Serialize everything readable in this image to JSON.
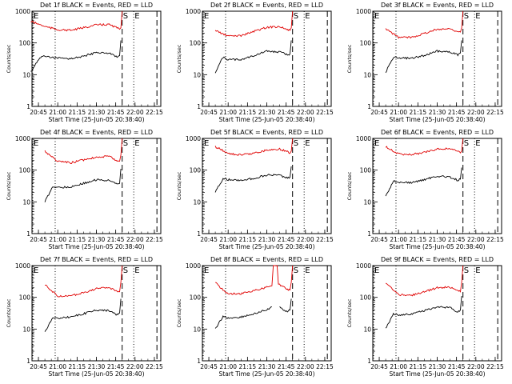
{
  "chart_data": [
    {
      "type": "line",
      "title": "Det 1f BLACK = Events, RED = LLD",
      "xlabel": "Start Time (25-Jun-05 20:38:40)",
      "ylabel": "Counts/sec",
      "ylog": true,
      "ylim": [
        1,
        1000
      ],
      "yticks": [
        "1",
        "10",
        "100",
        "1000"
      ],
      "xlim": [
        "20:40",
        "22:20"
      ],
      "xticks": [
        "20:45",
        "21:00",
        "21:15",
        "21:30",
        "21:45",
        "22:00",
        "22:15"
      ],
      "markers": [
        {
          "label": "E",
          "x": "20:38",
          "style": "dotted"
        },
        {
          "label": "",
          "x": "20:58",
          "style": "dotted"
        },
        {
          "label": "S",
          "x": "21:50",
          "style": "dashed"
        },
        {
          "label": "E",
          "x": "21:59",
          "style": "dotted"
        },
        {
          "label": "",
          "x": "22:17",
          "style": "dashed"
        }
      ],
      "series": [
        {
          "name": "BLACK = Events",
          "color": "#000000",
          "x": [
            "20:39",
            "20:46",
            "20:50",
            "21:00",
            "21:10",
            "21:20",
            "21:30",
            "21:40",
            "21:46",
            "21:48",
            "21:49"
          ],
          "values": [
            12,
            35,
            38,
            33,
            32,
            38,
            50,
            48,
            35,
            40,
            120
          ]
        },
        {
          "name": "RED = LLD",
          "color": "#e00000",
          "x": [
            "20:39",
            "20:50",
            "21:00",
            "21:10",
            "21:20",
            "21:30",
            "21:40",
            "21:46",
            "21:48",
            "21:49",
            "21:50"
          ],
          "values": [
            480,
            330,
            260,
            250,
            300,
            370,
            380,
            300,
            270,
            300,
            1000
          ]
        }
      ]
    },
    {
      "type": "line",
      "title": "Det 2f BLACK = Events, RED = LLD",
      "xlabel": "Start Time (25-Jun-05 20:38:40)",
      "ylabel": "Counts/sec",
      "ylog": true,
      "ylim": [
        1,
        1000
      ],
      "yticks": [
        "1",
        "10",
        "100",
        "1000"
      ],
      "xlim": [
        "20:40",
        "22:20"
      ],
      "xticks": [
        "20:45",
        "21:00",
        "21:15",
        "21:30",
        "21:45",
        "22:00",
        "22:15"
      ],
      "markers": [
        {
          "label": "E",
          "x": "20:38",
          "style": "dotted"
        },
        {
          "label": "",
          "x": "20:58",
          "style": "dotted"
        },
        {
          "label": "S",
          "x": "21:50",
          "style": "dashed"
        },
        {
          "label": "E",
          "x": "21:59",
          "style": "dotted"
        },
        {
          "label": "",
          "x": "22:17",
          "style": "dashed"
        }
      ],
      "series": [
        {
          "name": "BLACK = Events",
          "color": "#000000",
          "x": [
            "20:50",
            "20:56",
            "21:00",
            "21:10",
            "21:20",
            "21:30",
            "21:40",
            "21:46",
            "21:48",
            "21:49"
          ],
          "values": [
            12,
            35,
            30,
            30,
            40,
            55,
            52,
            42,
            45,
            120
          ]
        },
        {
          "name": "RED = LLD",
          "color": "#e00000",
          "x": [
            "20:50",
            "20:56",
            "21:00",
            "21:10",
            "21:20",
            "21:30",
            "21:40",
            "21:46",
            "21:48",
            "21:49",
            "21:50"
          ],
          "values": [
            250,
            190,
            165,
            170,
            230,
            310,
            330,
            260,
            250,
            300,
            1000
          ]
        }
      ]
    },
    {
      "type": "line",
      "title": "Det 3f BLACK = Events, RED = LLD",
      "xlabel": "Start Time (25-Jun-05 20:38:40)",
      "ylabel": "Counts/sec",
      "ylog": true,
      "ylim": [
        1,
        1000
      ],
      "yticks": [
        "1",
        "10",
        "100",
        "1000"
      ],
      "xlim": [
        "20:40",
        "22:20"
      ],
      "xticks": [
        "20:45",
        "21:00",
        "21:15",
        "21:30",
        "21:45",
        "22:00",
        "22:15"
      ],
      "markers": [
        {
          "label": "E",
          "x": "20:38",
          "style": "dotted"
        },
        {
          "label": "",
          "x": "20:58",
          "style": "dotted"
        },
        {
          "label": "S",
          "x": "21:50",
          "style": "dashed"
        },
        {
          "label": "E",
          "x": "21:59",
          "style": "dotted"
        },
        {
          "label": "",
          "x": "22:17",
          "style": "dashed"
        }
      ],
      "series": [
        {
          "name": "BLACK = Events",
          "color": "#000000",
          "x": [
            "20:50",
            "20:56",
            "21:00",
            "21:10",
            "21:20",
            "21:30",
            "21:40",
            "21:46",
            "21:48",
            "21:49"
          ],
          "values": [
            12,
            35,
            33,
            33,
            40,
            55,
            52,
            42,
            48,
            120
          ]
        },
        {
          "name": "RED = LLD",
          "color": "#e00000",
          "x": [
            "20:50",
            "20:56",
            "21:00",
            "21:10",
            "21:20",
            "21:30",
            "21:40",
            "21:46",
            "21:48",
            "21:49",
            "21:50"
          ],
          "values": [
            280,
            190,
            150,
            150,
            200,
            270,
            280,
            230,
            220,
            300,
            1000
          ]
        }
      ]
    },
    {
      "type": "line",
      "title": "Det 4f BLACK = Events, RED = LLD",
      "xlabel": "Start Time (25-Jun-05 20:38:40)",
      "ylabel": "Counts/sec",
      "ylog": true,
      "ylim": [
        1,
        1000
      ],
      "yticks": [
        "1",
        "10",
        "100",
        "1000"
      ],
      "xlim": [
        "20:40",
        "22:20"
      ],
      "xticks": [
        "20:45",
        "21:00",
        "21:15",
        "21:30",
        "21:45",
        "22:00",
        "22:15"
      ],
      "markers": [
        {
          "label": "E",
          "x": "20:38",
          "style": "dotted"
        },
        {
          "label": "",
          "x": "20:58",
          "style": "dotted"
        },
        {
          "label": "S",
          "x": "21:50",
          "style": "dashed"
        },
        {
          "label": "E",
          "x": "21:59",
          "style": "dotted"
        },
        {
          "label": "",
          "x": "22:17",
          "style": "dashed"
        }
      ],
      "series": [
        {
          "name": "BLACK = Events",
          "color": "#000000",
          "x": [
            "20:50",
            "20:56",
            "21:00",
            "21:10",
            "21:20",
            "21:30",
            "21:40",
            "21:46",
            "21:48",
            "21:49"
          ],
          "values": [
            10,
            30,
            28,
            30,
            38,
            50,
            48,
            35,
            38,
            110
          ]
        },
        {
          "name": "RED = LLD",
          "color": "#e00000",
          "x": [
            "20:50",
            "20:56",
            "21:00",
            "21:10",
            "21:20",
            "21:30",
            "21:40",
            "21:46",
            "21:48",
            "21:49",
            "21:50"
          ],
          "values": [
            400,
            250,
            190,
            170,
            210,
            260,
            270,
            200,
            190,
            300,
            1000
          ]
        }
      ]
    },
    {
      "type": "line",
      "title": "Det 5f BLACK = Events, RED = LLD",
      "xlabel": "Start Time (25-Jun-05 20:38:40)",
      "ylabel": "Counts/sec",
      "ylog": true,
      "ylim": [
        1,
        1000
      ],
      "yticks": [
        "1",
        "10",
        "100",
        "1000"
      ],
      "xlim": [
        "20:40",
        "22:20"
      ],
      "xticks": [
        "20:45",
        "21:00",
        "21:15",
        "21:30",
        "21:45",
        "22:00",
        "22:15"
      ],
      "markers": [
        {
          "label": "E",
          "x": "20:38",
          "style": "dotted"
        },
        {
          "label": "",
          "x": "20:58",
          "style": "dotted"
        },
        {
          "label": "S",
          "x": "21:50",
          "style": "dashed"
        },
        {
          "label": "E",
          "x": "21:59",
          "style": "dotted"
        },
        {
          "label": "",
          "x": "22:17",
          "style": "dashed"
        }
      ],
      "series": [
        {
          "name": "BLACK = Events",
          "color": "#000000",
          "x": [
            "20:50",
            "20:56",
            "21:00",
            "21:10",
            "21:20",
            "21:30",
            "21:40",
            "21:46",
            "21:48",
            "21:49"
          ],
          "values": [
            20,
            55,
            50,
            48,
            55,
            70,
            70,
            55,
            60,
            130
          ]
        },
        {
          "name": "RED = LLD",
          "color": "#e00000",
          "x": [
            "20:50",
            "20:56",
            "21:00",
            "21:10",
            "21:20",
            "21:30",
            "21:40",
            "21:46",
            "21:48",
            "21:49",
            "21:50"
          ],
          "values": [
            550,
            420,
            330,
            300,
            340,
            430,
            460,
            380,
            340,
            400,
            1000
          ]
        }
      ]
    },
    {
      "type": "line",
      "title": "Det 6f BLACK = Events, RED = LLD",
      "xlabel": "Start Time (25-Jun-05 20:38:40)",
      "ylabel": "Counts/sec",
      "ylog": true,
      "ylim": [
        1,
        1000
      ],
      "yticks": [
        "1",
        "10",
        "100",
        "1000"
      ],
      "xlim": [
        "20:40",
        "22:20"
      ],
      "xticks": [
        "20:45",
        "21:00",
        "21:15",
        "21:30",
        "21:45",
        "22:00",
        "22:15"
      ],
      "markers": [
        {
          "label": "E",
          "x": "20:38",
          "style": "dotted"
        },
        {
          "label": "",
          "x": "20:58",
          "style": "dotted"
        },
        {
          "label": "S",
          "x": "21:50",
          "style": "dashed"
        },
        {
          "label": "E",
          "x": "21:59",
          "style": "dotted"
        },
        {
          "label": "",
          "x": "22:17",
          "style": "dashed"
        }
      ],
      "series": [
        {
          "name": "BLACK = Events",
          "color": "#000000",
          "x": [
            "20:50",
            "20:56",
            "21:00",
            "21:10",
            "21:20",
            "21:30",
            "21:40",
            "21:46",
            "21:48",
            "21:49"
          ],
          "values": [
            15,
            45,
            42,
            40,
            50,
            65,
            60,
            48,
            52,
            120
          ]
        },
        {
          "name": "RED = LLD",
          "color": "#e00000",
          "x": [
            "20:50",
            "20:56",
            "21:00",
            "21:10",
            "21:20",
            "21:30",
            "21:40",
            "21:46",
            "21:48",
            "21:49",
            "21:50"
          ],
          "values": [
            550,
            400,
            320,
            310,
            360,
            460,
            480,
            390,
            350,
            400,
            1000
          ]
        }
      ]
    },
    {
      "type": "line",
      "title": "Det 7f BLACK = Events, RED = LLD",
      "xlabel": "Start Time (25-Jun-05 20:38:40)",
      "ylabel": "Counts/sec",
      "ylog": true,
      "ylim": [
        1,
        1000
      ],
      "yticks": [
        "1",
        "10",
        "100",
        "1000"
      ],
      "xlim": [
        "20:40",
        "22:20"
      ],
      "xticks": [
        "20:45",
        "21:00",
        "21:15",
        "21:30",
        "21:45",
        "22:00",
        "22:15"
      ],
      "markers": [
        {
          "label": "E",
          "x": "20:38",
          "style": "dotted"
        },
        {
          "label": "",
          "x": "20:58",
          "style": "dotted"
        },
        {
          "label": "S",
          "x": "21:50",
          "style": "dashed"
        },
        {
          "label": "E",
          "x": "21:59",
          "style": "dotted"
        },
        {
          "label": "",
          "x": "22:17",
          "style": "dashed"
        }
      ],
      "series": [
        {
          "name": "BLACK = Events",
          "color": "#000000",
          "x": [
            "20:50",
            "20:56",
            "21:00",
            "21:10",
            "21:20",
            "21:30",
            "21:40",
            "21:46",
            "21:48",
            "21:49"
          ],
          "values": [
            8,
            22,
            22,
            24,
            30,
            40,
            38,
            28,
            32,
            90
          ]
        },
        {
          "name": "RED = LLD",
          "color": "#e00000",
          "x": [
            "20:50",
            "20:56",
            "21:00",
            "21:10",
            "21:20",
            "21:30",
            "21:40",
            "21:46",
            "21:48",
            "21:49",
            "21:50"
          ],
          "values": [
            250,
            150,
            110,
            110,
            140,
            190,
            200,
            160,
            150,
            300,
            1000
          ]
        }
      ]
    },
    {
      "type": "line",
      "title": "Det 8f BLACK = Events, RED = LLD",
      "xlabel": "Start Time (25-Jun-05 20:38:40)",
      "ylabel": "Counts/sec",
      "ylog": true,
      "ylim": [
        1,
        1000
      ],
      "yticks": [
        "1",
        "10",
        "100",
        "1000"
      ],
      "xlim": [
        "20:40",
        "22:20"
      ],
      "xticks": [
        "20:45",
        "21:00",
        "21:15",
        "21:30",
        "21:45",
        "22:00",
        "22:15"
      ],
      "markers": [
        {
          "label": "E",
          "x": "20:38",
          "style": "dotted"
        },
        {
          "label": "",
          "x": "20:58",
          "style": "dotted"
        },
        {
          "label": "S",
          "x": "21:50",
          "style": "dashed"
        },
        {
          "label": "E",
          "x": "21:59",
          "style": "dotted"
        },
        {
          "label": "",
          "x": "22:17",
          "style": "dashed"
        }
      ],
      "series": [
        {
          "name": "BLACK = Events",
          "color": "#000000",
          "x": [
            "20:50",
            "20:56",
            "21:00",
            "21:10",
            "21:20",
            "21:30",
            "21:34",
            "21:35",
            "21:39",
            "21:40",
            "21:46",
            "21:48",
            "21:49"
          ],
          "values": [
            10,
            25,
            22,
            24,
            30,
            40,
            50,
            null,
            null,
            48,
            35,
            40,
            90
          ]
        },
        {
          "name": "RED = LLD",
          "color": "#e00000",
          "x": [
            "20:50",
            "20:56",
            "21:00",
            "21:10",
            "21:20",
            "21:30",
            "21:34",
            "21:35",
            "21:38",
            "21:39",
            "21:40",
            "21:46",
            "21:48",
            "21:49",
            "21:50"
          ],
          "values": [
            300,
            170,
            130,
            130,
            160,
            210,
            230,
            1000,
            1000,
            260,
            250,
            180,
            170,
            300,
            1000
          ]
        }
      ]
    },
    {
      "type": "line",
      "title": "Det 9f BLACK = Events, RED = LLD",
      "xlabel": "Start Time (25-Jun-05 20:38:40)",
      "ylabel": "Counts/sec",
      "ylog": true,
      "ylim": [
        1,
        1000
      ],
      "yticks": [
        "1",
        "10",
        "100",
        "1000"
      ],
      "xlim": [
        "20:40",
        "22:20"
      ],
      "xticks": [
        "20:45",
        "21:00",
        "21:15",
        "21:30",
        "21:45",
        "22:00",
        "22:15"
      ],
      "markers": [
        {
          "label": "E",
          "x": "20:38",
          "style": "dotted"
        },
        {
          "label": "",
          "x": "20:58",
          "style": "dotted"
        },
        {
          "label": "S",
          "x": "21:50",
          "style": "dashed"
        },
        {
          "label": "E",
          "x": "21:59",
          "style": "dotted"
        },
        {
          "label": "",
          "x": "22:17",
          "style": "dashed"
        }
      ],
      "series": [
        {
          "name": "BLACK = Events",
          "color": "#000000",
          "x": [
            "20:50",
            "20:56",
            "21:00",
            "21:10",
            "21:20",
            "21:30",
            "21:40",
            "21:46",
            "21:48",
            "21:49"
          ],
          "values": [
            10,
            30,
            28,
            30,
            38,
            50,
            48,
            35,
            40,
            110
          ]
        },
        {
          "name": "RED = LLD",
          "color": "#e00000",
          "x": [
            "20:50",
            "20:56",
            "21:00",
            "21:10",
            "21:20",
            "21:30",
            "21:40",
            "21:46",
            "21:48",
            "21:49",
            "21:50"
          ],
          "values": [
            280,
            170,
            120,
            115,
            150,
            200,
            210,
            160,
            150,
            300,
            1000
          ]
        }
      ]
    }
  ]
}
